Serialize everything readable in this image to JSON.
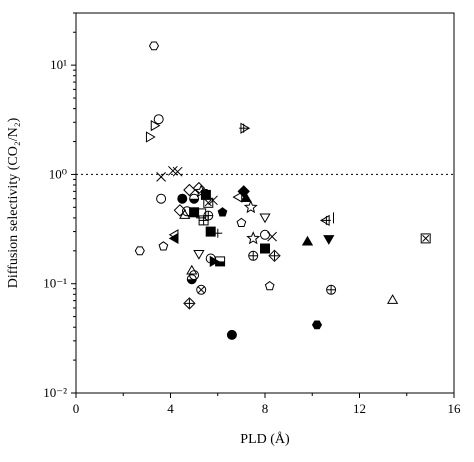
{
  "chart_data": {
    "type": "scatter",
    "xlabel": "PLD (Å)",
    "ylabel": "Diffusion selectivity (CO₂/N₂)",
    "xlim": [
      0,
      16
    ],
    "ylim": [
      0.01,
      30
    ],
    "yscale": "log",
    "x_ticks": [
      0,
      4,
      8,
      12,
      16
    ],
    "x_tick_labels": [
      "0",
      "4",
      "8",
      "12",
      "16"
    ],
    "y_ticks": [
      0.01,
      0.1,
      1,
      10
    ],
    "y_tick_labels": [
      "10⁻²",
      "10⁻¹",
      "10⁰",
      "10¹"
    ],
    "reference_line": {
      "y": 1,
      "style": "dotted"
    },
    "grid": false,
    "points": [
      {
        "x": 3.3,
        "y": 15.0,
        "marker": "hexagon-open"
      },
      {
        "x": 3.5,
        "y": 3.2,
        "marker": "cross-star"
      },
      {
        "x": 3.3,
        "y": 2.8,
        "marker": "triangle-right-open"
      },
      {
        "x": 3.1,
        "y": 2.2,
        "marker": "triangle-right-open"
      },
      {
        "x": 7.1,
        "y": 2.65,
        "marker": "triangle-right-cross"
      },
      {
        "x": 4.1,
        "y": 1.08,
        "marker": "x"
      },
      {
        "x": 4.3,
        "y": 1.06,
        "marker": "x"
      },
      {
        "x": 3.6,
        "y": 0.95,
        "marker": "x"
      },
      {
        "x": 3.6,
        "y": 0.6,
        "marker": "cross-star"
      },
      {
        "x": 4.8,
        "y": 0.72,
        "marker": "diamond-open"
      },
      {
        "x": 5.2,
        "y": 0.75,
        "marker": "diamond-open"
      },
      {
        "x": 5.3,
        "y": 0.7,
        "marker": "star-open"
      },
      {
        "x": 5.5,
        "y": 0.65,
        "marker": "square-filled"
      },
      {
        "x": 4.5,
        "y": 0.6,
        "marker": "circle-filled"
      },
      {
        "x": 5.0,
        "y": 0.6,
        "marker": "circle-half"
      },
      {
        "x": 5.6,
        "y": 0.55,
        "marker": "square-x"
      },
      {
        "x": 5.8,
        "y": 0.58,
        "marker": "x"
      },
      {
        "x": 6.9,
        "y": 0.62,
        "marker": "triangle-left-open"
      },
      {
        "x": 7.1,
        "y": 0.7,
        "marker": "diamond-filled"
      },
      {
        "x": 7.2,
        "y": 0.6,
        "marker": "triangle-up-filled"
      },
      {
        "x": 7.4,
        "y": 0.5,
        "marker": "star-open"
      },
      {
        "x": 4.4,
        "y": 0.47,
        "marker": "diamond-open"
      },
      {
        "x": 4.7,
        "y": 0.46,
        "marker": "cross-star"
      },
      {
        "x": 5.0,
        "y": 0.45,
        "marker": "square-filled"
      },
      {
        "x": 5.3,
        "y": 0.44,
        "marker": "square-open"
      },
      {
        "x": 5.6,
        "y": 0.42,
        "marker": "circle-plus"
      },
      {
        "x": 6.2,
        "y": 0.45,
        "marker": "pentagon-filled"
      },
      {
        "x": 4.6,
        "y": 0.42,
        "marker": "triangle-up-open"
      },
      {
        "x": 5.4,
        "y": 0.38,
        "marker": "square-cross"
      },
      {
        "x": 7.0,
        "y": 0.36,
        "marker": "pentagon-open"
      },
      {
        "x": 8.0,
        "y": 0.41,
        "marker": "triangle-down-open"
      },
      {
        "x": 8.0,
        "y": 0.28,
        "marker": "circle-open"
      },
      {
        "x": 8.3,
        "y": 0.27,
        "marker": "x"
      },
      {
        "x": 10.6,
        "y": 0.38,
        "marker": "triangle-left-cross"
      },
      {
        "x": 10.9,
        "y": 0.4,
        "marker": "vline"
      },
      {
        "x": 4.2,
        "y": 0.28,
        "marker": "triangle-left-open"
      },
      {
        "x": 4.2,
        "y": 0.26,
        "marker": "triangle-left-filled"
      },
      {
        "x": 3.7,
        "y": 0.22,
        "marker": "pentagon-open"
      },
      {
        "x": 2.7,
        "y": 0.2,
        "marker": "hexagon-open"
      },
      {
        "x": 5.7,
        "y": 0.3,
        "marker": "square-filled"
      },
      {
        "x": 6.0,
        "y": 0.29,
        "marker": "plus"
      },
      {
        "x": 7.5,
        "y": 0.26,
        "marker": "star-open"
      },
      {
        "x": 8.0,
        "y": 0.21,
        "marker": "square-filled"
      },
      {
        "x": 8.4,
        "y": 0.18,
        "marker": "diamond-cross"
      },
      {
        "x": 9.8,
        "y": 0.24,
        "marker": "triangle-up-filled"
      },
      {
        "x": 10.7,
        "y": 0.26,
        "marker": "triangle-down-filled"
      },
      {
        "x": 14.8,
        "y": 0.26,
        "marker": "square-x"
      },
      {
        "x": 5.2,
        "y": 0.19,
        "marker": "triangle-down-open"
      },
      {
        "x": 5.7,
        "y": 0.17,
        "marker": "circle-open"
      },
      {
        "x": 5.8,
        "y": 0.16,
        "marker": "triangle-right-filled"
      },
      {
        "x": 6.1,
        "y": 0.16,
        "marker": "square-half"
      },
      {
        "x": 7.5,
        "y": 0.18,
        "marker": "circle-plus"
      },
      {
        "x": 4.9,
        "y": 0.13,
        "marker": "triangle-up-open"
      },
      {
        "x": 5.0,
        "y": 0.12,
        "marker": "cross-star"
      },
      {
        "x": 4.9,
        "y": 0.11,
        "marker": "circle-half"
      },
      {
        "x": 5.3,
        "y": 0.088,
        "marker": "circle-x"
      },
      {
        "x": 8.2,
        "y": 0.095,
        "marker": "pentagon-open"
      },
      {
        "x": 10.8,
        "y": 0.088,
        "marker": "circle-plus"
      },
      {
        "x": 13.4,
        "y": 0.07,
        "marker": "triangle-up-open"
      },
      {
        "x": 4.8,
        "y": 0.066,
        "marker": "diamond-cross"
      },
      {
        "x": 6.6,
        "y": 0.034,
        "marker": "circle-filled"
      },
      {
        "x": 10.2,
        "y": 0.042,
        "marker": "hexagon-filled"
      }
    ]
  }
}
